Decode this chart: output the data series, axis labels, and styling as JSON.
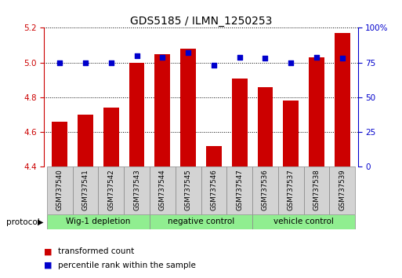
{
  "title": "GDS5185 / ILMN_1250253",
  "samples": [
    "GSM737540",
    "GSM737541",
    "GSM737542",
    "GSM737543",
    "GSM737544",
    "GSM737545",
    "GSM737546",
    "GSM737547",
    "GSM737536",
    "GSM737537",
    "GSM737538",
    "GSM737539"
  ],
  "bar_values": [
    4.66,
    4.7,
    4.74,
    5.0,
    5.05,
    5.08,
    4.52,
    4.91,
    4.86,
    4.78,
    5.03,
    5.17
  ],
  "dot_values": [
    75,
    75,
    75,
    80,
    79,
    82,
    73,
    79,
    78,
    75,
    79,
    78
  ],
  "ylim_left": [
    4.4,
    5.2
  ],
  "ylim_right": [
    0,
    100
  ],
  "yticks_left": [
    4.4,
    4.6,
    4.8,
    5.0,
    5.2
  ],
  "yticks_right": [
    0,
    25,
    50,
    75,
    100
  ],
  "bar_color": "#cc0000",
  "dot_color": "#0000cc",
  "group_labels": [
    "Wig-1 depletion",
    "negative control",
    "vehicle control"
  ],
  "group_ranges": [
    [
      0,
      4
    ],
    [
      4,
      8
    ],
    [
      8,
      12
    ]
  ],
  "protocol_label": "protocol",
  "legend_bar_label": "transformed count",
  "legend_dot_label": "percentile rank within the sample",
  "title_fontsize": 10,
  "tick_fontsize": 7.5,
  "axis_color_left": "#cc0000",
  "axis_color_right": "#0000cc",
  "sample_box_color": "#d3d3d3",
  "group_box_color": "#90ee90"
}
